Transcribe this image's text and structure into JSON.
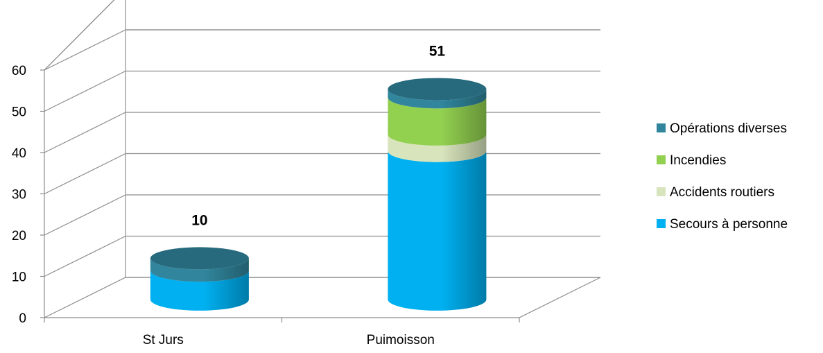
{
  "chart_data": {
    "type": "bar",
    "style": "3d-stacked-cylinder",
    "title": "",
    "xlabel": "",
    "ylabel": "",
    "categories": [
      "St Jurs",
      "Puimoisson"
    ],
    "ylim": [
      0,
      60
    ],
    "yticks": [
      0,
      10,
      20,
      30,
      40,
      50,
      60
    ],
    "grid": true,
    "legend_position": "right",
    "series": [
      {
        "name": "Secours à personne",
        "color": "#00B0F0",
        "values": [
          7,
          36
        ]
      },
      {
        "name": "Accidents routiers",
        "color": "#D8E4BC",
        "values": [
          0,
          4
        ]
      },
      {
        "name": "Incendies",
        "color": "#92D050",
        "values": [
          0,
          9
        ]
      },
      {
        "name": "Opérations diverses",
        "color": "#31859C",
        "values": [
          3,
          2
        ]
      }
    ],
    "totals": [
      10,
      51
    ]
  }
}
